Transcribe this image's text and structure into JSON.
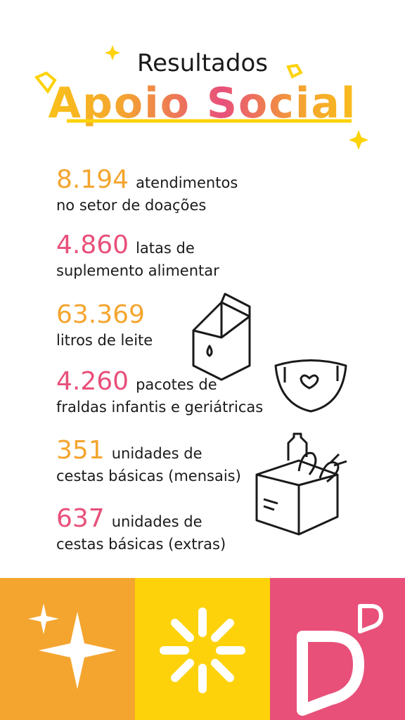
{
  "header": {
    "title": "Resultados",
    "subtitle": "Apoio Social"
  },
  "items": [
    {
      "number": "8.194",
      "text": "atendimentos",
      "line2": "no setor de doações",
      "color": "#F4A52F"
    },
    {
      "number": "4.860",
      "text": "latas de",
      "line2": "suplemento alimentar",
      "color": "#E8507A"
    },
    {
      "number": "63.369",
      "text": "",
      "line2": "litros de leite",
      "color": "#F4A52F"
    },
    {
      "number": "4.260",
      "text": "pacotes de",
      "line2": "fraldas infantis e geriátricas",
      "color": "#E8507A"
    },
    {
      "number": "351",
      "text": "unidades de",
      "line2": "cestas básicas (mensais)",
      "color": "#F4A52F"
    },
    {
      "number": "637",
      "text": "unidades de",
      "line2": "cestas básicas (extras)",
      "color": "#E8507A"
    }
  ]
}
